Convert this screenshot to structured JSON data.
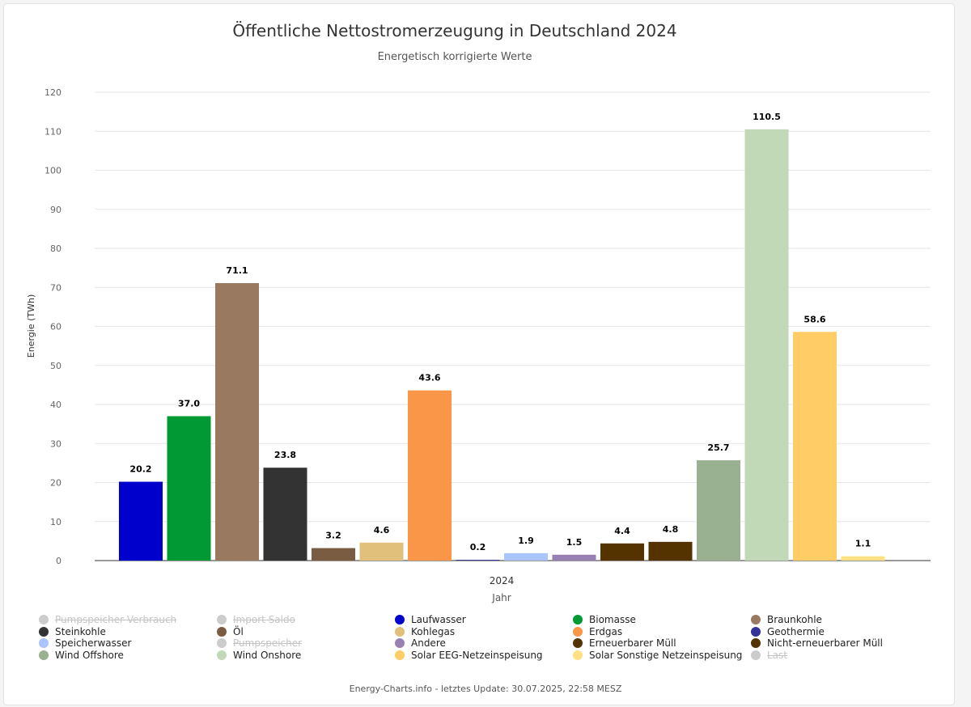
{
  "chart_data": {
    "type": "bar",
    "title": "Öffentliche Nettostromerzeugung in Deutschland 2024",
    "subtitle": "Energetisch korrigierte Werte",
    "xlabel": "Jahr",
    "ylabel": "Energie (TWh)",
    "categories": [
      "2024"
    ],
    "ylim": [
      0,
      120
    ],
    "yticks": [
      "0",
      "10",
      "20",
      "30",
      "40",
      "50",
      "60",
      "70",
      "80",
      "90",
      "100",
      "110",
      "120"
    ],
    "grid": true,
    "legend_placement": "bottom",
    "series": [
      {
        "name": "Laufwasser",
        "value": 20.2,
        "label": "20.2",
        "color": "#0000cc"
      },
      {
        "name": "Biomasse",
        "value": 37.0,
        "label": "37.0",
        "color": "#009933"
      },
      {
        "name": "Braunkohle",
        "value": 71.1,
        "label": "71.1",
        "color": "#997a60"
      },
      {
        "name": "Steinkohle",
        "value": 23.8,
        "label": "23.8",
        "color": "#333333"
      },
      {
        "name": "Öl",
        "value": 3.2,
        "label": "3.2",
        "color": "#7a5c43"
      },
      {
        "name": "Kohlegas",
        "value": 4.6,
        "label": "4.6",
        "color": "#e0c07a"
      },
      {
        "name": "Erdgas",
        "value": 43.6,
        "label": "43.6",
        "color": "#f99648"
      },
      {
        "name": "Geothermie",
        "value": 0.2,
        "label": "0.2",
        "color": "#333399"
      },
      {
        "name": "Speicherwasser",
        "value": 1.9,
        "label": "1.9",
        "color": "#aac4ff"
      },
      {
        "name": "Andere",
        "value": 1.5,
        "label": "1.5",
        "color": "#9980b3"
      },
      {
        "name": "Erneuerbarer Müll",
        "value": 4.4,
        "label": "4.4",
        "color": "#553300"
      },
      {
        "name": "Nicht-erneuerbarer Müll",
        "value": 4.8,
        "label": "4.8",
        "color": "#553300"
      },
      {
        "name": "Wind Offshore",
        "value": 25.7,
        "label": "25.7",
        "color": "#99b190"
      },
      {
        "name": "Wind Onshore",
        "value": 110.5,
        "label": "110.5",
        "color": "#c2d9b8"
      },
      {
        "name": "Solar EEG-Netzeinspeisung",
        "value": 58.6,
        "label": "58.6",
        "color": "#ffcc66"
      },
      {
        "name": "Solar Sonstige Netzeinspeisung",
        "value": 1.1,
        "label": "1.1",
        "color": "#ffe082"
      }
    ]
  },
  "legend": [
    {
      "label": "Pumpspeicher Verbrauch",
      "color": "#cccccc",
      "hidden": true
    },
    {
      "label": "Import Saldo",
      "color": "#cccccc",
      "hidden": true
    },
    {
      "label": "Laufwasser",
      "color": "#0000cc",
      "hidden": false
    },
    {
      "label": "Biomasse",
      "color": "#009933",
      "hidden": false
    },
    {
      "label": "Braunkohle",
      "color": "#997a60",
      "hidden": false
    },
    {
      "label": "Steinkohle",
      "color": "#333333",
      "hidden": false
    },
    {
      "label": "Öl",
      "color": "#7a5c43",
      "hidden": false
    },
    {
      "label": "Kohlegas",
      "color": "#e0c07a",
      "hidden": false
    },
    {
      "label": "Erdgas",
      "color": "#f99648",
      "hidden": false
    },
    {
      "label": "Geothermie",
      "color": "#333399",
      "hidden": false
    },
    {
      "label": "Speicherwasser",
      "color": "#aac4ff",
      "hidden": false
    },
    {
      "label": "Pumpspeicher",
      "color": "#cccccc",
      "hidden": true
    },
    {
      "label": "Andere",
      "color": "#9980b3",
      "hidden": false
    },
    {
      "label": "Erneuerbarer Müll",
      "color": "#553300",
      "hidden": false
    },
    {
      "label": "Nicht-erneuerbarer Müll",
      "color": "#553300",
      "hidden": false
    },
    {
      "label": "Wind Offshore",
      "color": "#99b190",
      "hidden": false
    },
    {
      "label": "Wind Onshore",
      "color": "#c2d9b8",
      "hidden": false
    },
    {
      "label": "Solar EEG-Netzeinspeisung",
      "color": "#ffcc66",
      "hidden": false
    },
    {
      "label": "Solar Sonstige Netzeinspeisung",
      "color": "#ffe082",
      "hidden": false
    },
    {
      "label": "Last",
      "color": "#cccccc",
      "hidden": true
    }
  ],
  "footer": "Energy-Charts.info - letztes Update: 30.07.2025, 22:58 MESZ"
}
